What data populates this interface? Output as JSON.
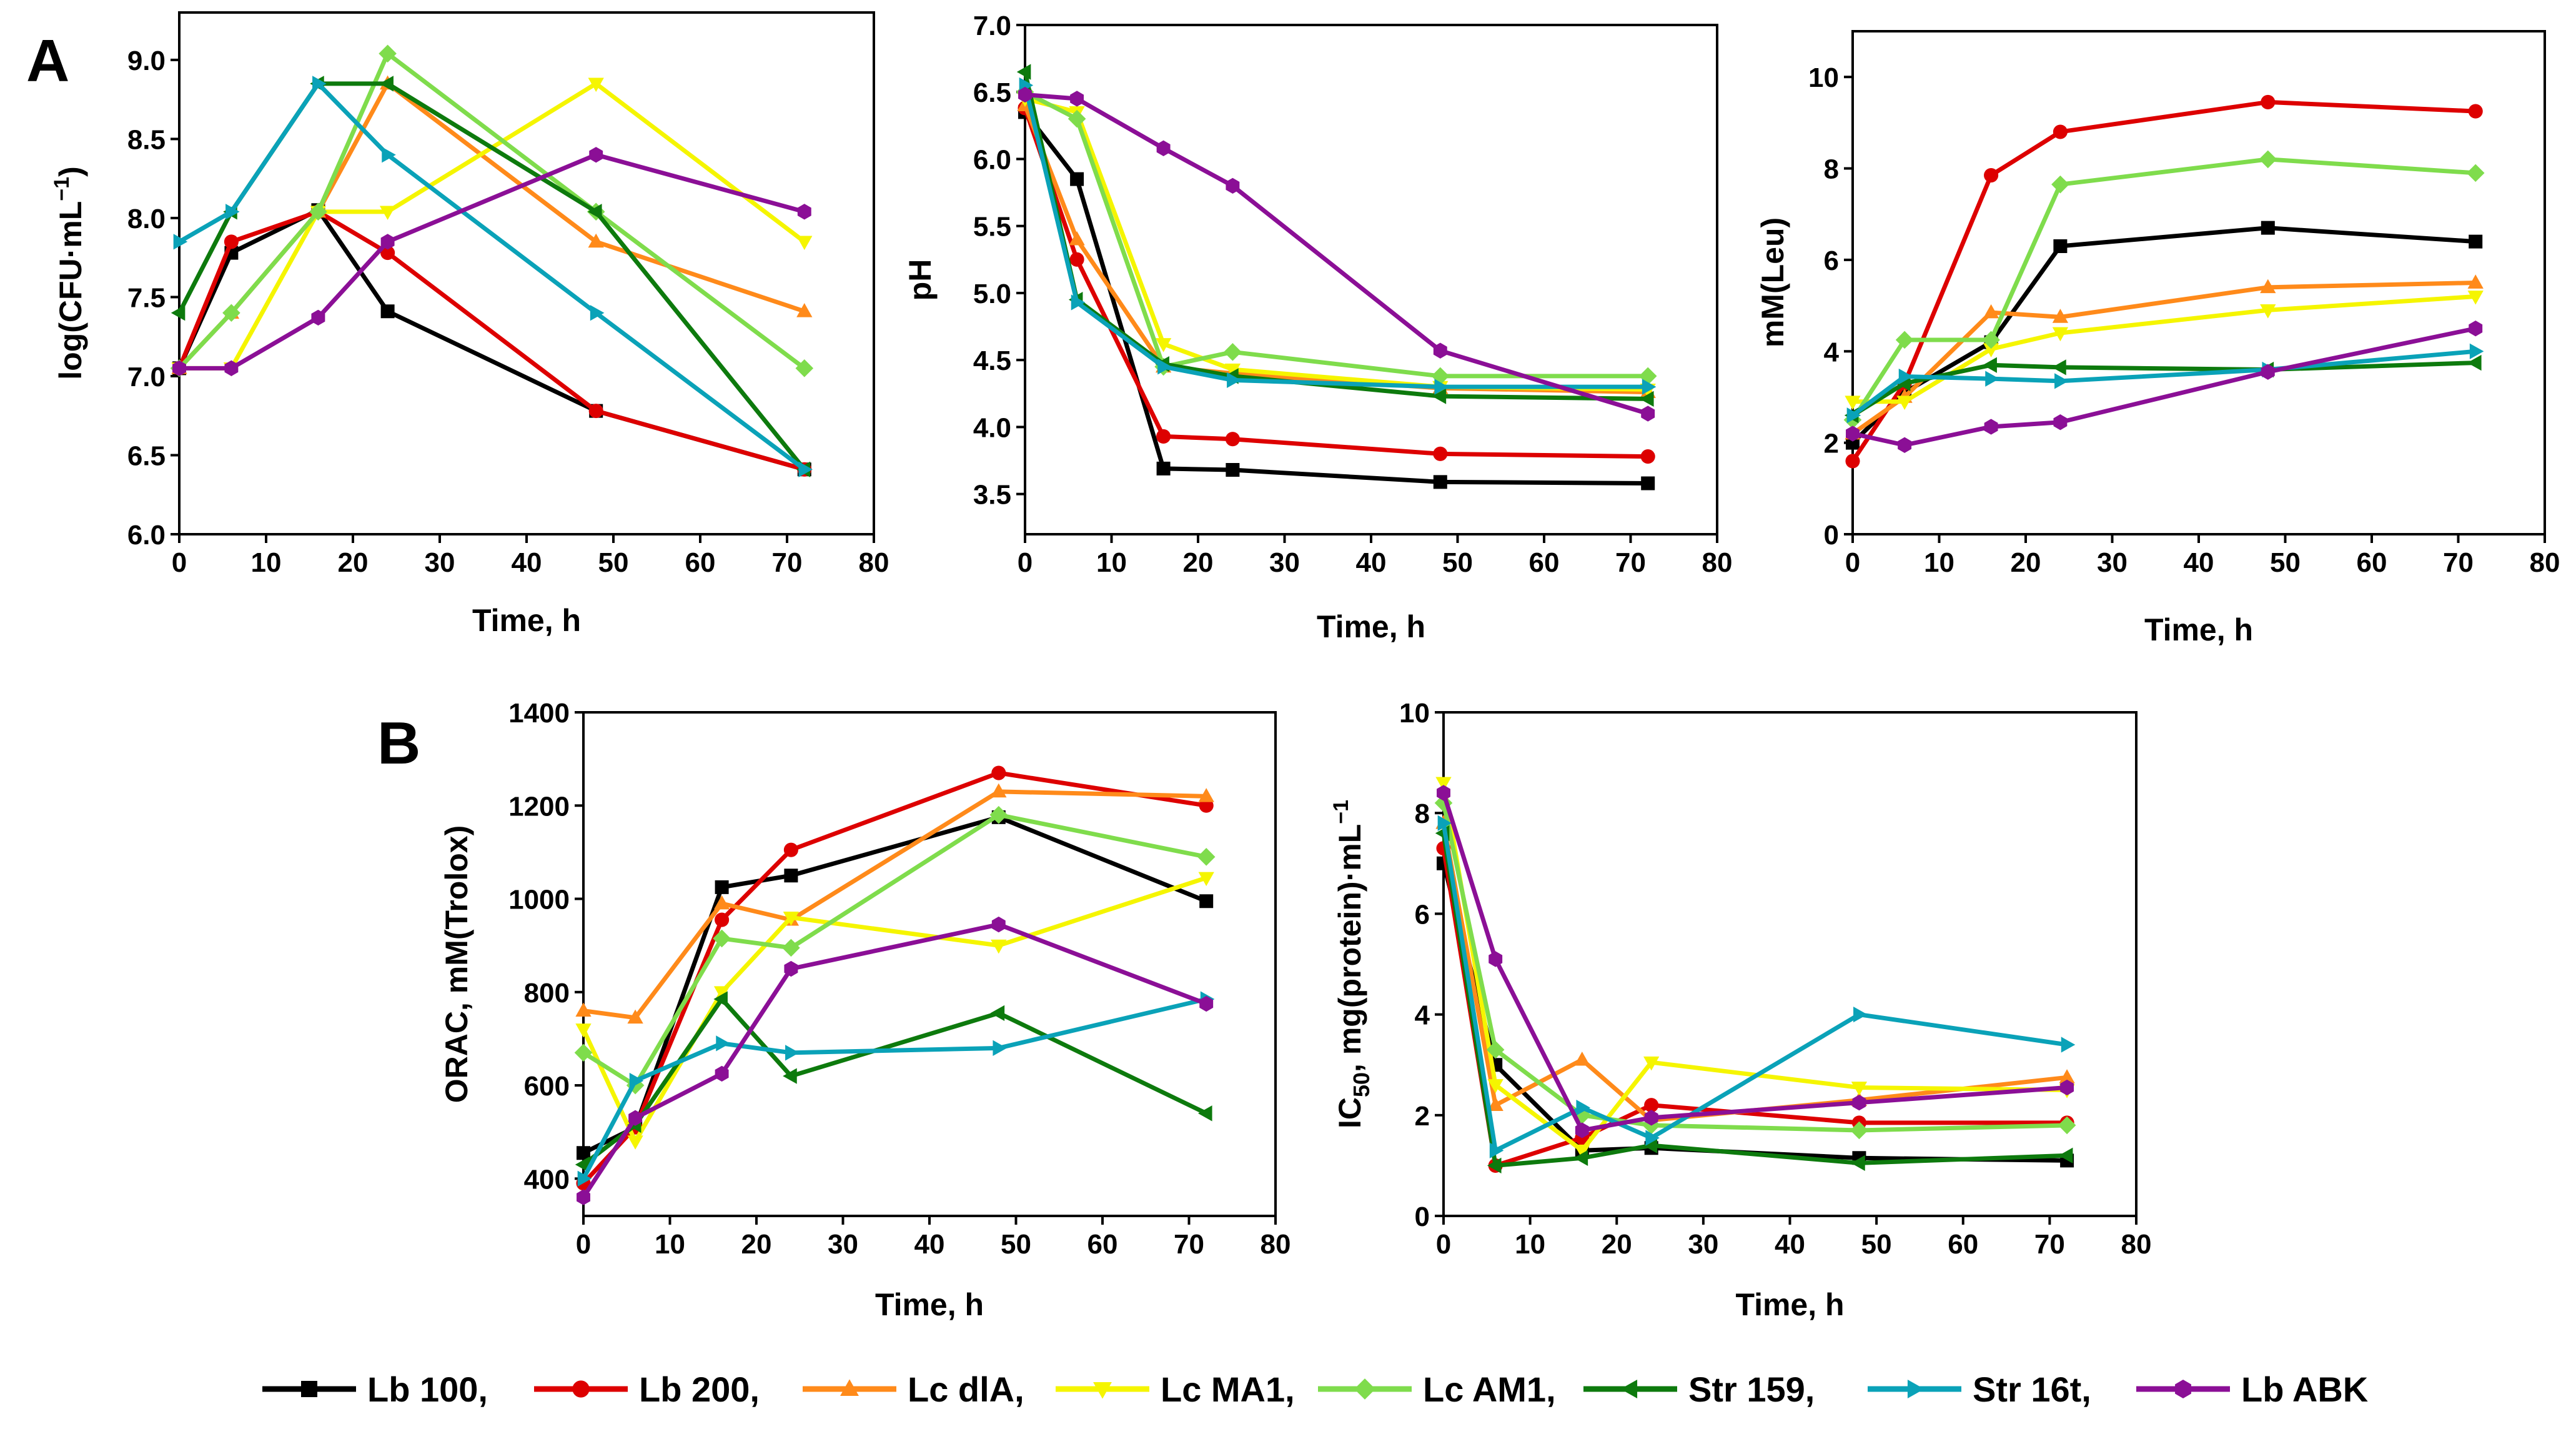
{
  "panel_letters": {
    "a": "A",
    "b": "B"
  },
  "legend": [
    {
      "name": "Lb 100,",
      "color": "#000000",
      "marker": "square"
    },
    {
      "name": "Lb 200,",
      "color": "#dd0000",
      "marker": "circle"
    },
    {
      "name": "Lc dlA,",
      "color": "#ff8a1a",
      "marker": "triangle-up"
    },
    {
      "name": "Lc MA1,",
      "color": "#f5f500",
      "marker": "triangle-down"
    },
    {
      "name": "Lc AM1,",
      "color": "#7fdc4c",
      "marker": "diamond"
    },
    {
      "name": "Str 159,",
      "color": "#0d7a0d",
      "marker": "triangle-left"
    },
    {
      "name": "Str 16t,",
      "color": "#0aa2b8",
      "marker": "triangle-right"
    },
    {
      "name": "Lb ABK",
      "color": "#8b0f96",
      "marker": "hexagon"
    }
  ],
  "chart_data": [
    {
      "id": "A1",
      "type": "line",
      "xlabel": "Time, h",
      "ylabel": "log(CFU·mL",
      "ylabel_sup": "−1",
      "ylabel_suffix": ")",
      "xlim": [
        0,
        80
      ],
      "ylim": [
        6.0,
        9.3
      ],
      "xticks": [
        0,
        10,
        20,
        30,
        40,
        50,
        60,
        70,
        80
      ],
      "yticks": [
        6.0,
        6.5,
        7.0,
        7.5,
        8.0,
        8.5,
        9.0
      ],
      "ytick_format": "1",
      "x": [
        0,
        6,
        16,
        24,
        48,
        72
      ],
      "series": [
        {
          "name": "Lb 100",
          "values": [
            7.05,
            7.78,
            8.05,
            7.41,
            6.78,
            6.41
          ]
        },
        {
          "name": "Lb 200",
          "values": [
            7.05,
            7.85,
            8.04,
            7.78,
            6.78,
            6.41
          ]
        },
        {
          "name": "Lc dlA",
          "values": [
            7.05,
            7.4,
            8.04,
            8.85,
            7.85,
            7.41
          ]
        },
        {
          "name": "Lc MA1",
          "values": [
            7.05,
            7.05,
            8.04,
            8.04,
            8.85,
            7.85
          ]
        },
        {
          "name": "Lc AM1",
          "values": [
            7.05,
            7.4,
            8.04,
            9.04,
            8.04,
            7.05
          ]
        },
        {
          "name": "Str 159",
          "values": [
            7.4,
            8.04,
            8.85,
            8.85,
            8.04,
            6.41
          ]
        },
        {
          "name": "Str 16t",
          "values": [
            7.85,
            8.04,
            8.85,
            8.4,
            7.4,
            6.41
          ]
        },
        {
          "name": "Lb ABK",
          "values": [
            7.05,
            7.05,
            7.37,
            7.85,
            8.4,
            8.04
          ]
        }
      ]
    },
    {
      "id": "A2",
      "type": "line",
      "xlabel": "Time, h",
      "ylabel": "pH",
      "xlim": [
        0,
        80
      ],
      "ylim": [
        3.2,
        7.0
      ],
      "xticks": [
        0,
        10,
        20,
        30,
        40,
        50,
        60,
        70,
        80
      ],
      "yticks": [
        3.5,
        4.0,
        4.5,
        5.0,
        5.5,
        6.0,
        6.5,
        7.0
      ],
      "ytick_format": "1",
      "x": [
        0,
        6,
        16,
        24,
        48,
        72
      ],
      "series": [
        {
          "name": "Lb 100",
          "values": [
            6.35,
            5.85,
            3.69,
            3.68,
            3.59,
            3.58
          ]
        },
        {
          "name": "Lb 200",
          "values": [
            6.38,
            5.25,
            3.93,
            3.91,
            3.8,
            3.78
          ]
        },
        {
          "name": "Lc dlA",
          "values": [
            6.4,
            5.4,
            4.45,
            4.4,
            4.29,
            4.26
          ]
        },
        {
          "name": "Lc MA1",
          "values": [
            6.45,
            6.35,
            4.62,
            4.43,
            4.3,
            4.28
          ]
        },
        {
          "name": "Lc AM1",
          "values": [
            6.5,
            6.3,
            4.45,
            4.56,
            4.38,
            4.38
          ]
        },
        {
          "name": "Str 159",
          "values": [
            6.65,
            4.95,
            4.47,
            4.38,
            4.23,
            4.21
          ]
        },
        {
          "name": "Str 16t",
          "values": [
            6.55,
            4.93,
            4.45,
            4.35,
            4.3,
            4.3
          ]
        },
        {
          "name": "Lb ABK",
          "values": [
            6.48,
            6.45,
            6.08,
            5.8,
            4.57,
            4.1
          ]
        }
      ]
    },
    {
      "id": "A3",
      "type": "line",
      "xlabel": "Time, h",
      "ylabel": "mM(Leu)",
      "xlim": [
        0,
        80
      ],
      "ylim": [
        0,
        11
      ],
      "xticks": [
        0,
        10,
        20,
        30,
        40,
        50,
        60,
        70,
        80
      ],
      "yticks": [
        0,
        2,
        4,
        6,
        8,
        10
      ],
      "ytick_format": "0",
      "x": [
        0,
        6,
        16,
        24,
        48,
        72
      ],
      "series": [
        {
          "name": "Lb 100",
          "values": [
            2.0,
            3.1,
            4.2,
            6.3,
            6.7,
            6.4
          ]
        },
        {
          "name": "Lb 200",
          "values": [
            1.6,
            3.3,
            7.85,
            8.8,
            9.45,
            9.25
          ]
        },
        {
          "name": "Lc dlA",
          "values": [
            2.2,
            3.0,
            4.85,
            4.75,
            5.4,
            5.5
          ]
        },
        {
          "name": "Lc MA1",
          "values": [
            2.9,
            2.9,
            4.05,
            4.4,
            4.9,
            5.2
          ]
        },
        {
          "name": "Lc AM1",
          "values": [
            2.5,
            4.25,
            4.25,
            7.65,
            8.2,
            7.9
          ]
        },
        {
          "name": "Str 159",
          "values": [
            2.6,
            3.3,
            3.7,
            3.65,
            3.6,
            3.75
          ]
        },
        {
          "name": "Str 16t",
          "values": [
            2.6,
            3.45,
            3.4,
            3.35,
            3.6,
            4.0
          ]
        },
        {
          "name": "Lb ABK",
          "values": [
            2.2,
            1.95,
            2.35,
            2.45,
            3.55,
            4.5
          ]
        }
      ]
    },
    {
      "id": "B1",
      "type": "line",
      "xlabel": "Time, h",
      "ylabel": "ORAC, mM(Trolox)",
      "xlim": [
        0,
        80
      ],
      "ylim": [
        320,
        1400
      ],
      "xticks": [
        0,
        10,
        20,
        30,
        40,
        50,
        60,
        70,
        80
      ],
      "yticks": [
        400,
        600,
        800,
        1000,
        1200,
        1400
      ],
      "ytick_format": "0",
      "x": [
        0,
        6,
        16,
        24,
        48,
        72
      ],
      "series": [
        {
          "name": "Lb 100",
          "values": [
            455,
            510,
            1025,
            1050,
            1175,
            995
          ]
        },
        {
          "name": "Lb 200",
          "values": [
            390,
            510,
            955,
            1105,
            1270,
            1200
          ]
        },
        {
          "name": "Lc dlA",
          "values": [
            760,
            745,
            990,
            955,
            1230,
            1220
          ]
        },
        {
          "name": "Lc MA1",
          "values": [
            720,
            480,
            800,
            960,
            900,
            1045
          ]
        },
        {
          "name": "Lc AM1",
          "values": [
            670,
            600,
            915,
            895,
            1180,
            1090
          ]
        },
        {
          "name": "Str 159",
          "values": [
            430,
            515,
            785,
            620,
            755,
            540
          ]
        },
        {
          "name": "Str 16t",
          "values": [
            400,
            610,
            690,
            670,
            680,
            785
          ]
        },
        {
          "name": "Lb ABK",
          "values": [
            360,
            530,
            625,
            850,
            945,
            775
          ]
        }
      ]
    },
    {
      "id": "B2",
      "type": "line",
      "xlabel": "Time, h",
      "ylabel": "IC",
      "ylabel_sub": "50",
      "ylabel_suffix": ", mg(protein)·mL",
      "ylabel_sup": "−1",
      "xlim": [
        0,
        80
      ],
      "ylim": [
        0,
        10
      ],
      "xticks": [
        0,
        10,
        20,
        30,
        40,
        50,
        60,
        70,
        80
      ],
      "yticks": [
        0,
        2,
        4,
        6,
        8,
        10
      ],
      "ytick_format": "0",
      "x": [
        0,
        6,
        16,
        24,
        48,
        72
      ],
      "series": [
        {
          "name": "Lb 100",
          "values": [
            7.0,
            3.0,
            1.3,
            1.35,
            1.15,
            1.1
          ]
        },
        {
          "name": "Lb 200",
          "values": [
            7.3,
            1.0,
            1.55,
            2.2,
            1.85,
            1.85
          ]
        },
        {
          "name": "Lc dlA",
          "values": [
            7.8,
            2.2,
            3.1,
            1.9,
            2.3,
            2.75
          ]
        },
        {
          "name": "Lc MA1",
          "values": [
            8.6,
            2.6,
            1.3,
            3.05,
            2.55,
            2.5
          ]
        },
        {
          "name": "Lc AM1",
          "values": [
            8.2,
            3.3,
            2.0,
            1.8,
            1.7,
            1.8
          ]
        },
        {
          "name": "Str 159",
          "values": [
            7.6,
            1.0,
            1.15,
            1.4,
            1.05,
            1.2
          ]
        },
        {
          "name": "Str 16t",
          "values": [
            7.8,
            1.3,
            2.15,
            1.55,
            4.0,
            3.4
          ]
        },
        {
          "name": "Lb ABK",
          "values": [
            8.4,
            5.1,
            1.7,
            1.95,
            2.25,
            2.55
          ]
        }
      ]
    }
  ]
}
